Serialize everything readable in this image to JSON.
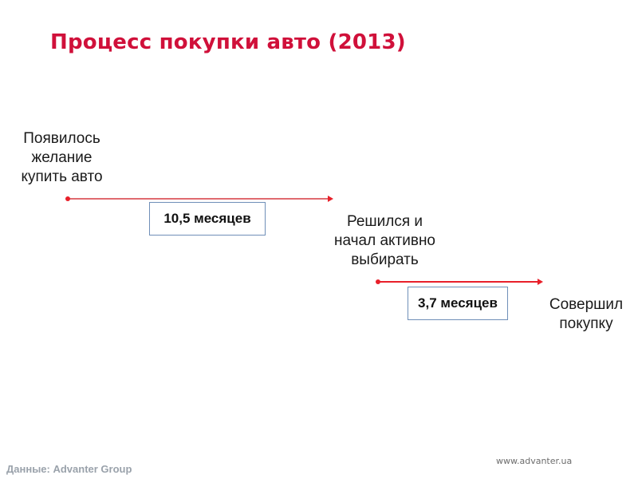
{
  "slide": {
    "title": "Процесс покупки авто (2013)",
    "title_color": "#d0103a"
  },
  "process": {
    "stages": [
      {
        "label": "Появилось\nжелание\nкупить авто"
      },
      {
        "label": "Решился и\nначал активно\nвыбирать"
      },
      {
        "label": "Совершил\nпокупку"
      }
    ],
    "durations": [
      {
        "label": "10,5 месяцев",
        "from_stage": 0,
        "to_stage": 1
      },
      {
        "label": "3,7 месяцев",
        "from_stage": 1,
        "to_stage": 2
      }
    ],
    "arrow_color": "#e8202a",
    "box_border_color": "#6f8fb8"
  },
  "footer": {
    "source": "Данные: Advanter Group",
    "website": "www.advanter.ua"
  }
}
